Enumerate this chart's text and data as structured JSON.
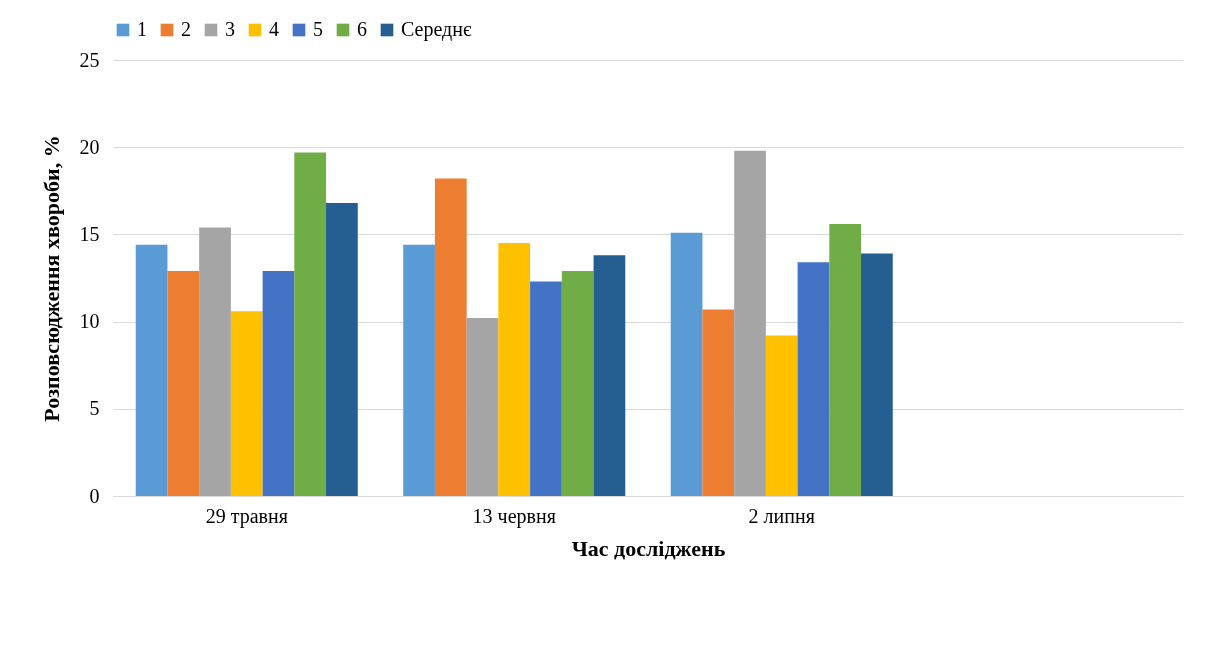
{
  "chart_data": {
    "type": "bar",
    "xlabel": "Час досліджень",
    "ylabel": "Розповсюдження хвороби, %",
    "categories": [
      "29 травня",
      "13 червня",
      "2 липня",
      null
    ],
    "series": [
      {
        "name": "1",
        "color": "#5b9bd5",
        "values": [
          14.4,
          14.4,
          15.1,
          null
        ]
      },
      {
        "name": "2",
        "color": "#ed7d31",
        "values": [
          12.9,
          18.2,
          10.7,
          null
        ]
      },
      {
        "name": "3",
        "color": "#a5a5a5",
        "values": [
          15.4,
          10.2,
          19.8,
          null
        ]
      },
      {
        "name": "4",
        "color": "#ffc000",
        "values": [
          10.6,
          14.5,
          9.2,
          null
        ]
      },
      {
        "name": "5",
        "color": "#4472c4",
        "values": [
          12.9,
          12.3,
          13.4,
          null
        ]
      },
      {
        "name": "6",
        "color": "#70ad47",
        "values": [
          19.7,
          12.9,
          15.6,
          null
        ]
      },
      {
        "name": "Середнє",
        "color": "#255e91",
        "values": [
          16.8,
          13.8,
          13.9,
          null
        ]
      }
    ],
    "ylim": [
      0,
      25
    ],
    "yticks": [
      0,
      5,
      10,
      15,
      20,
      25
    ],
    "grid": "y",
    "legend": "top"
  }
}
